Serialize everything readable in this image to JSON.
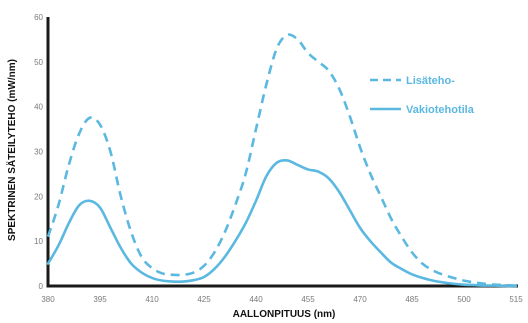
{
  "chart_data": {
    "type": "line",
    "title": "",
    "xlabel": "AALLONPITUUS (nm)",
    "ylabel": "SPEKTRINEN SÄTEILYTEHO (mW/nm)",
    "xlim": [
      380,
      515
    ],
    "ylim": [
      0,
      60
    ],
    "x_ticks": [
      380,
      395,
      410,
      425,
      440,
      455,
      470,
      485,
      500,
      515
    ],
    "y_ticks": [
      0,
      10,
      20,
      30,
      40,
      50,
      60
    ],
    "grid": false,
    "legend_position": "right",
    "color": "#5bb8e0",
    "x": [
      380,
      383,
      386,
      389,
      392,
      395,
      398,
      401,
      404,
      407,
      410,
      413,
      416,
      419,
      422,
      425,
      428,
      431,
      434,
      437,
      440,
      443,
      446,
      449,
      452,
      455,
      458,
      461,
      464,
      467,
      470,
      473,
      476,
      479,
      482,
      485,
      488,
      491,
      494,
      497,
      500,
      503,
      506,
      509,
      512,
      515
    ],
    "series": [
      {
        "name": "Lisäteho-",
        "style": "dashed",
        "values": [
          11,
          18,
          27,
          34,
          37.5,
          36,
          30,
          20,
          12,
          6.5,
          4,
          2.8,
          2.5,
          2.5,
          3,
          4.5,
          7.5,
          12,
          18,
          25,
          35,
          45,
          53,
          56,
          55,
          52,
          50,
          48,
          44,
          38,
          31,
          25,
          20,
          15,
          11,
          7.5,
          5,
          3.5,
          2.5,
          1.8,
          1.2,
          0.8,
          0.5,
          0.3,
          0.2,
          0.1
        ]
      },
      {
        "name": "Vakiotehotila",
        "style": "solid",
        "values": [
          5,
          9,
          14,
          18,
          19,
          17.5,
          13,
          8.5,
          5,
          3,
          1.8,
          1.2,
          1,
          1,
          1.3,
          2,
          3.8,
          6.5,
          10,
          14,
          19,
          24.5,
          27.5,
          28,
          27,
          26,
          25.5,
          24,
          21,
          17,
          13,
          10,
          7.5,
          5.2,
          3.8,
          2.6,
          1.8,
          1.2,
          0.8,
          0.5,
          0.3,
          0.2,
          0.1,
          0.1,
          0,
          0
        ]
      }
    ]
  }
}
